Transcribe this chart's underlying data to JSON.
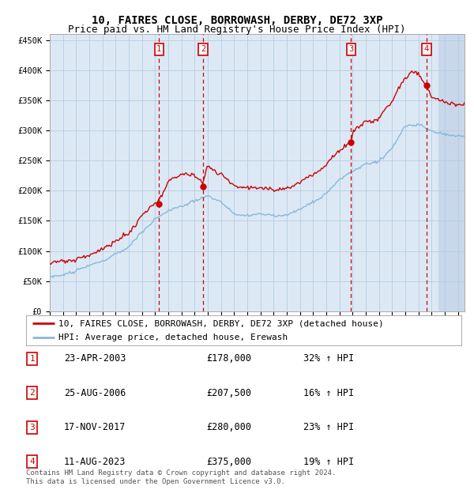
{
  "title": "10, FAIRES CLOSE, BORROWASH, DERBY, DE72 3XP",
  "subtitle": "Price paid vs. HM Land Registry's House Price Index (HPI)",
  "ylabel_ticks": [
    "£0",
    "£50K",
    "£100K",
    "£150K",
    "£200K",
    "£250K",
    "£300K",
    "£350K",
    "£400K",
    "£450K"
  ],
  "ytick_values": [
    0,
    50000,
    100000,
    150000,
    200000,
    250000,
    300000,
    350000,
    400000,
    450000
  ],
  "ylim": [
    0,
    460000
  ],
  "xlim_start": 1995.0,
  "xlim_end": 2026.5,
  "transactions": [
    {
      "num": 1,
      "date": "23-APR-2003",
      "year": 2003.3,
      "price": 178000,
      "pct": "32%",
      "label": "32% ↑ HPI"
    },
    {
      "num": 2,
      "date": "25-AUG-2006",
      "year": 2006.65,
      "price": 207500,
      "pct": "16%",
      "label": "16% ↑ HPI"
    },
    {
      "num": 3,
      "date": "17-NOV-2017",
      "year": 2017.88,
      "price": 280000,
      "pct": "23%",
      "label": "23% ↑ HPI"
    },
    {
      "num": 4,
      "date": "11-AUG-2023",
      "year": 2023.61,
      "price": 375000,
      "pct": "19%",
      "label": "19% ↑ HPI"
    }
  ],
  "legend_line1": "10, FAIRES CLOSE, BORROWASH, DERBY, DE72 3XP (detached house)",
  "legend_line2": "HPI: Average price, detached house, Erewash",
  "footer": "Contains HM Land Registry data © Crown copyright and database right 2024.\nThis data is licensed under the Open Government Licence v3.0.",
  "bg_color": "#dce9f5",
  "hatch_edgecolor": "#b8cee0",
  "grid_color": "#b8cce0",
  "red_line_color": "#cc0000",
  "blue_line_color": "#88b8d8",
  "marker_fill": "#cc0000",
  "vline_color": "#cc0000",
  "box_color": "#cc0000",
  "title_fontsize": 10,
  "subtitle_fontsize": 9,
  "tick_fontsize": 7.5,
  "legend_fontsize": 8,
  "table_fontsize": 8.5,
  "footer_fontsize": 6.5,
  "hpi_key_years": [
    1995,
    1996,
    1997,
    1998,
    1999,
    2000,
    2001,
    2002,
    2003,
    2004,
    2005,
    2006,
    2007,
    2008,
    2009,
    2010,
    2011,
    2012,
    2013,
    2014,
    2015,
    2016,
    2017,
    2018,
    2019,
    2020,
    2021,
    2022,
    2023,
    2024,
    2025,
    2026
  ],
  "hpi_key_vals": [
    57000,
    61000,
    67000,
    74000,
    82000,
    92000,
    105000,
    128000,
    152000,
    168000,
    175000,
    182000,
    190000,
    178000,
    160000,
    158000,
    160000,
    157000,
    160000,
    170000,
    183000,
    200000,
    222000,
    238000,
    248000,
    252000,
    272000,
    308000,
    312000,
    298000,
    293000,
    290000
  ],
  "red_key_years": [
    1995,
    1996,
    1997,
    1998,
    1999,
    2000,
    2001,
    2002,
    2003,
    2003.3,
    2004,
    2005,
    2006,
    2006.65,
    2007,
    2008,
    2009,
    2010,
    2011,
    2012,
    2013,
    2014,
    2015,
    2016,
    2017,
    2017.88,
    2018,
    2019,
    2020,
    2021,
    2022,
    2022.5,
    2023,
    2023.61,
    2024,
    2025,
    2026
  ],
  "red_key_vals": [
    79000,
    82000,
    87000,
    94000,
    100000,
    112000,
    125000,
    152000,
    175000,
    178000,
    208000,
    220000,
    228000,
    207500,
    235000,
    220000,
    200000,
    198000,
    200000,
    196000,
    200000,
    212000,
    228000,
    248000,
    268000,
    280000,
    298000,
    318000,
    325000,
    348000,
    388000,
    400000,
    395000,
    375000,
    360000,
    348000,
    344000
  ]
}
